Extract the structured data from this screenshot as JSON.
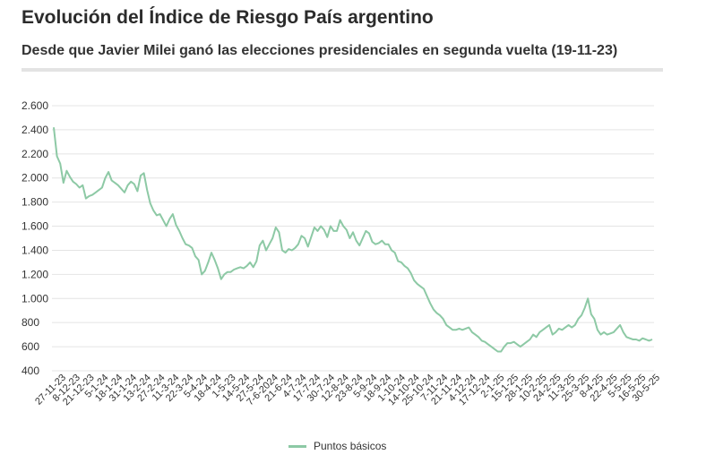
{
  "title": "Evolución del Índice de Riesgo País argentino",
  "subtitle": "Desde que Javier Milei ganó las elecciones presidenciales en segunda vuelta (19-11-23)",
  "colors": {
    "line": "#8dc9a5",
    "grid": "#e4e4e4",
    "text": "#333333",
    "rule": "#e3e3e3"
  },
  "chart_data": {
    "type": "line",
    "title": "Evolución del Índice de Riesgo País argentino",
    "subtitle": "Desde que Javier Milei ganó las elecciones presidenciales en segunda vuelta (19-11-23)",
    "xlabel": "",
    "ylabel": "",
    "ylim": [
      400,
      2600
    ],
    "y_ticks": [
      400,
      600,
      800,
      1000,
      1200,
      1400,
      1600,
      1800,
      2000,
      2200,
      2400,
      2600
    ],
    "y_tick_labels": [
      "400",
      "600",
      "800",
      "1.000",
      "1.200",
      "1.400",
      "1.600",
      "1.800",
      "2.000",
      "2.200",
      "2.400",
      "2.600"
    ],
    "x_tick_labels": [
      "27-11-23",
      "8-12-23",
      "21-12-23",
      "5-1-24",
      "18-1-24",
      "31-1-24",
      "13-2-24",
      "27-2-24",
      "11-3-24",
      "22-3-24",
      "5-4-24",
      "18-4-24",
      "1-5-23",
      "14-5-24",
      "27-5-24",
      "7-6-2024",
      "21-6-24",
      "4-7-24",
      "17-7-24",
      "30-7-24",
      "12-8-24",
      "23-8-24",
      "5-9-24",
      "18-9-24",
      "1-10-24",
      "14-10-24",
      "25-10-24",
      "7-11-24",
      "21-11-24",
      "4-12-24",
      "17-12-24",
      "2-1-25",
      "15-1-25",
      "28-1-25",
      "10-2-25",
      "24-2-25",
      "11-3-25",
      "25-3-25",
      "8-4-25",
      "22-4-25",
      "5-5-25",
      "16-5-25",
      "30-5-25"
    ],
    "grid": true,
    "legend_position": "bottom",
    "series": [
      {
        "name": "Puntos básicos",
        "values": [
          2420,
          2180,
          2120,
          1960,
          2060,
          2010,
          1970,
          1950,
          1920,
          1940,
          1830,
          1850,
          1860,
          1880,
          1900,
          1920,
          2000,
          2050,
          1980,
          1960,
          1940,
          1910,
          1880,
          1940,
          1970,
          1950,
          1890,
          2020,
          2040,
          1900,
          1790,
          1730,
          1690,
          1700,
          1650,
          1600,
          1660,
          1700,
          1610,
          1560,
          1500,
          1450,
          1440,
          1420,
          1350,
          1320,
          1200,
          1230,
          1300,
          1380,
          1320,
          1250,
          1160,
          1200,
          1220,
          1220,
          1240,
          1250,
          1260,
          1250,
          1270,
          1300,
          1260,
          1310,
          1440,
          1480,
          1400,
          1450,
          1500,
          1590,
          1550,
          1400,
          1380,
          1410,
          1400,
          1420,
          1450,
          1520,
          1500,
          1430,
          1510,
          1590,
          1560,
          1600,
          1570,
          1510,
          1600,
          1560,
          1560,
          1650,
          1600,
          1570,
          1500,
          1550,
          1480,
          1440,
          1500,
          1560,
          1540,
          1470,
          1450,
          1460,
          1480,
          1450,
          1450,
          1400,
          1380,
          1310,
          1300,
          1270,
          1250,
          1210,
          1150,
          1120,
          1100,
          1080,
          1020,
          960,
          910,
          880,
          860,
          830,
          780,
          760,
          740,
          740,
          750,
          740,
          750,
          760,
          720,
          700,
          680,
          650,
          640,
          620,
          600,
          580,
          560,
          560,
          600,
          630,
          630,
          640,
          620,
          600,
          620,
          640,
          660,
          700,
          680,
          720,
          740,
          760,
          780,
          700,
          720,
          750,
          740,
          760,
          780,
          760,
          780,
          830,
          860,
          920,
          1000,
          870,
          830,
          740,
          700,
          720,
          700,
          710,
          720,
          750,
          780,
          720,
          680,
          670,
          660,
          660,
          650,
          670,
          660,
          650,
          660
        ]
      }
    ]
  },
  "legend": {
    "label": "Puntos básicos"
  }
}
